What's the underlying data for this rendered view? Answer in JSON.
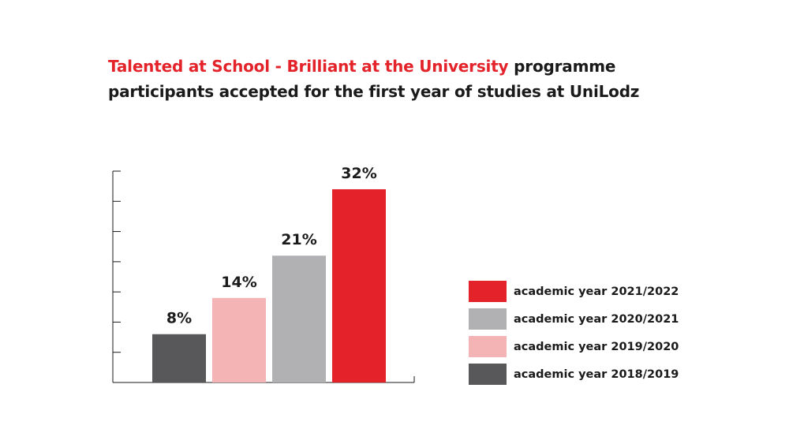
{
  "title": {
    "highlight": "Talented at School - Brilliant at the University",
    "rest": " programme participants accepted for the first year of studies at UniLodz"
  },
  "chart_data": {
    "type": "bar",
    "categories": [
      "academic year 2018/2019",
      "academic year 2019/2020",
      "academic year 2020/2021",
      "academic year 2021/2022"
    ],
    "values": [
      8,
      14,
      21,
      32
    ],
    "value_labels": [
      "8%",
      "14%",
      "21%",
      "32%"
    ],
    "colors": [
      "#58585a",
      "#f4b3b4",
      "#b1b1b3",
      "#e32229"
    ],
    "ylim": [
      0,
      35
    ],
    "grid": false,
    "legend": {
      "placement": "right",
      "items": [
        {
          "label": "academic year 2021/2022",
          "color": "#e32229"
        },
        {
          "label": "academic year 2020/2021",
          "color": "#b1b1b3"
        },
        {
          "label": "academic year 2019/2020",
          "color": "#f4b3b4"
        },
        {
          "label": "academic year 2018/2019",
          "color": "#58585a"
        }
      ]
    }
  }
}
